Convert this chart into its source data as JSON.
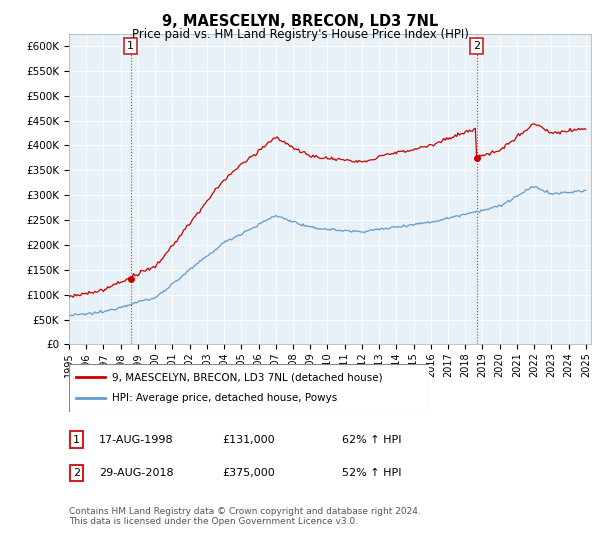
{
  "title": "9, MAESCELYN, BRECON, LD3 7NL",
  "subtitle": "Price paid vs. HM Land Registry's House Price Index (HPI)",
  "ylim": [
    0,
    625000
  ],
  "yticks": [
    0,
    50000,
    100000,
    150000,
    200000,
    250000,
    300000,
    350000,
    400000,
    450000,
    500000,
    550000,
    600000
  ],
  "sale1": {
    "date": "17-AUG-1998",
    "price": 131000,
    "label": "1",
    "hpi_pct": "62% ↑ HPI",
    "year": 1998.62
  },
  "sale2": {
    "date": "29-AUG-2018",
    "price": 375000,
    "label": "2",
    "hpi_pct": "52% ↑ HPI",
    "year": 2018.66
  },
  "legend_property": "9, MAESCELYN, BRECON, LD3 7NL (detached house)",
  "legend_hpi": "HPI: Average price, detached house, Powys",
  "property_color": "#cc0000",
  "hpi_color": "#6699cc",
  "chart_bg": "#e8f0f8",
  "footnote": "Contains HM Land Registry data © Crown copyright and database right 2024.\nThis data is licensed under the Open Government Licence v3.0."
}
